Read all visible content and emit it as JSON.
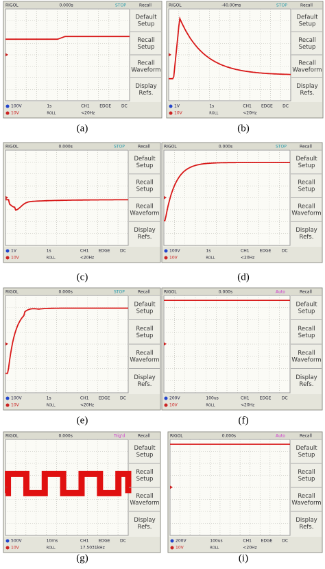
{
  "panels": [
    {
      "caption": "(a)",
      "top": {
        "brand": "RIGOL",
        "trigger": "0.000s",
        "status": "STOP",
        "menu": "Recall"
      },
      "menu": [
        [
          "Default",
          "Setup"
        ],
        [
          "Recall",
          "Setup"
        ],
        [
          "Recall",
          "Waveform"
        ],
        [
          "Display",
          "Refs."
        ]
      ],
      "bottom": {
        "ch1": "100V",
        "ch2": "10V",
        "time": "1s",
        "mode": "ROLL",
        "source": "CH1",
        "trig": "EDGE",
        "coupling": "DC",
        "freq": "<20Hz"
      }
    },
    {
      "caption": "(b)",
      "top": {
        "brand": "RIGOL",
        "trigger": "-40.00ms",
        "status": "STOP",
        "menu": "Recall"
      },
      "menu": [
        [
          "Default",
          "Setup"
        ],
        [
          "Recall",
          "Setup"
        ],
        [
          "Recall",
          "Waveform"
        ],
        [
          "Display",
          "Refs."
        ]
      ],
      "bottom": {
        "ch1": "1V",
        "ch2": "10V",
        "time": "1s",
        "mode": "ROLL",
        "source": "CH1",
        "trig": "EDGE",
        "coupling": "DC",
        "freq": "<20Hz"
      }
    },
    {
      "caption": "(c)",
      "top": {
        "brand": "RIGOL",
        "trigger": "0.000s",
        "status": "STOP",
        "menu": "Recall"
      },
      "menu": [
        [
          "Default",
          "Setup"
        ],
        [
          "Recall",
          "Setup"
        ],
        [
          "Recall",
          "Waveform"
        ],
        [
          "Display",
          "Refs."
        ]
      ],
      "bottom": {
        "ch1": "1V",
        "ch2": "10V",
        "time": "1s",
        "mode": "ROLL",
        "source": "CH1",
        "trig": "EDGE",
        "coupling": "DC",
        "freq": "<20Hz"
      }
    },
    {
      "caption": "(d)",
      "top": {
        "brand": "RIGOL",
        "trigger": "0.000s",
        "status": "STOP",
        "menu": "Recall"
      },
      "menu": [
        [
          "Default",
          "Setup"
        ],
        [
          "Recall",
          "Setup"
        ],
        [
          "Recall",
          "Waveform"
        ],
        [
          "Display",
          "Refs."
        ]
      ],
      "bottom": {
        "ch1": "100V",
        "ch2": "10V",
        "time": "1s",
        "mode": "ROLL",
        "source": "CH1",
        "trig": "EDGE",
        "coupling": "DC",
        "freq": "<20Hz"
      }
    },
    {
      "caption": "(e)",
      "top": {
        "brand": "RIGOL",
        "trigger": "0.000s",
        "status": "STOP",
        "menu": "Recall"
      },
      "menu": [
        [
          "Default",
          "Setup"
        ],
        [
          "Recall",
          "Setup"
        ],
        [
          "Recall",
          "Waveform"
        ],
        [
          "Display",
          "Refs."
        ]
      ],
      "bottom": {
        "ch1": "100V",
        "ch2": "10V",
        "time": "1s",
        "mode": "ROLL",
        "source": "CH1",
        "trig": "EDGE",
        "coupling": "DC",
        "freq": "<20Hz"
      }
    },
    {
      "caption": "(f)",
      "top": {
        "brand": "RIGOL",
        "trigger": "0.000s",
        "status": "Auto",
        "menu": "Recall"
      },
      "menu": [
        [
          "Default",
          "Setup"
        ],
        [
          "Recall",
          "Setup"
        ],
        [
          "Recall",
          "Waveform"
        ],
        [
          "Display",
          "Refs."
        ]
      ],
      "bottom": {
        "ch1": "200V",
        "ch2": "10V",
        "time": "100us",
        "mode": "ROLL",
        "source": "CH1",
        "trig": "EDGE",
        "coupling": "DC",
        "freq": "<20Hz"
      }
    },
    {
      "caption": "(g)",
      "top": {
        "brand": "RIGOL",
        "trigger": "0.000s",
        "status": "Trig'd",
        "menu": "Recall"
      },
      "menu": [
        [
          "Default",
          "Setup"
        ],
        [
          "Recall",
          "Setup"
        ],
        [
          "Recall",
          "Waveform"
        ],
        [
          "Display",
          "Refs."
        ]
      ],
      "bottom": {
        "ch1": "500V",
        "ch2": "10V",
        "time": "10ms",
        "mode": "ROLL",
        "source": "CH1",
        "trig": "EDGE",
        "coupling": "DC",
        "freq": "17.5031kHz"
      }
    },
    {
      "caption": "(i)",
      "top": {
        "brand": "RIGOL",
        "trigger": "0.000s",
        "status": "Auto",
        "menu": "Recall"
      },
      "menu": [
        [
          "Default",
          "Setup"
        ],
        [
          "Recall",
          "Setup"
        ],
        [
          "Recall",
          "Waveform"
        ],
        [
          "Display",
          "Refs."
        ]
      ],
      "bottom": {
        "ch1": "200V",
        "ch2": "10V",
        "time": "100us",
        "mode": "ROLL",
        "source": "CH1",
        "trig": "EDGE",
        "coupling": "DC",
        "freq": "<20Hz"
      }
    }
  ]
}
